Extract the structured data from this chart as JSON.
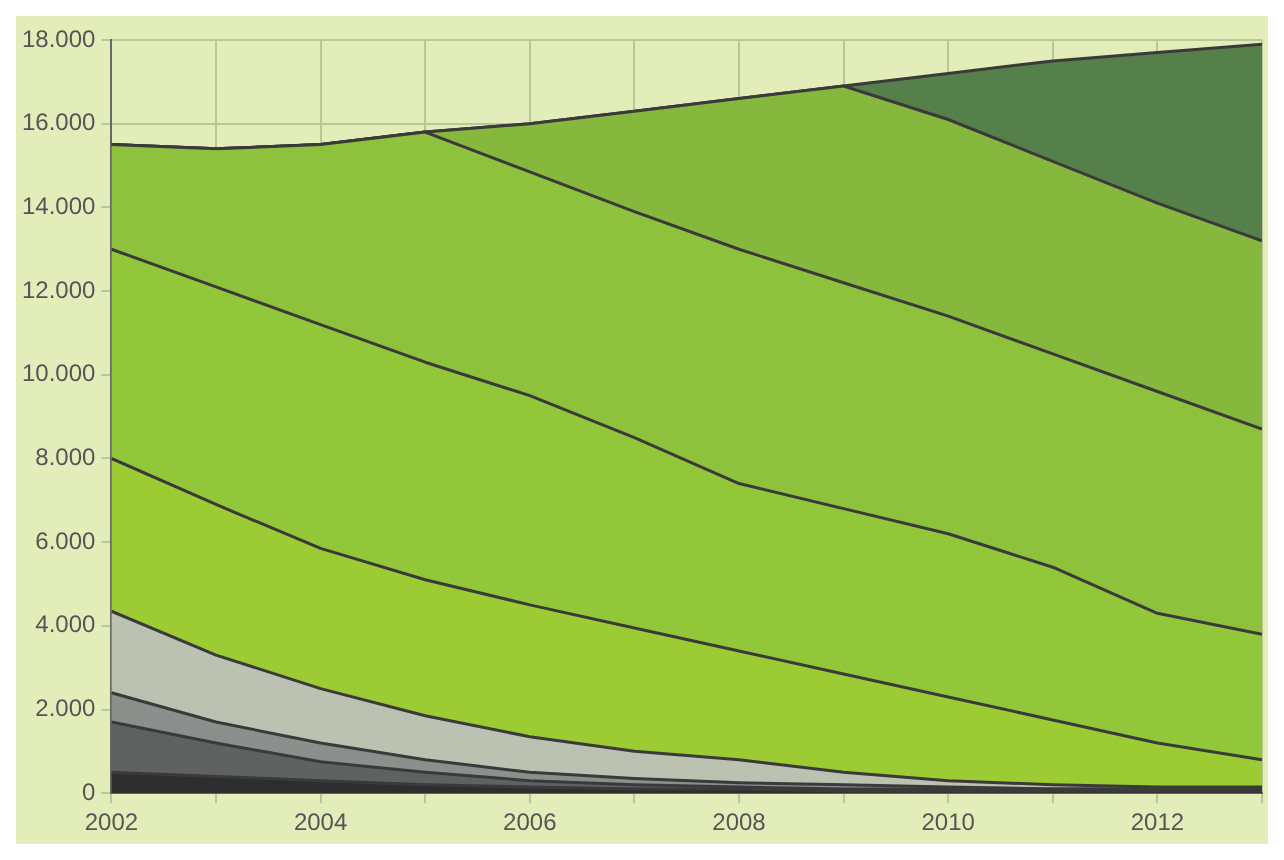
{
  "chart_data": {
    "type": "area",
    "stacked": true,
    "grid": true,
    "marker": "none",
    "x": [
      2002,
      2003,
      2004,
      2005,
      2006,
      2007,
      2008,
      2009,
      2010,
      2011,
      2012,
      2013
    ],
    "xlim": [
      2002,
      2013
    ],
    "xticks": [
      2002,
      {
        "value": 2003,
        "label": null
      },
      2004,
      {
        "value": 2005,
        "label": null
      },
      2006,
      {
        "value": 2007,
        "label": null
      },
      2008,
      {
        "value": 2009,
        "label": null
      },
      2010,
      {
        "value": 2011,
        "label": null
      },
      2012,
      {
        "value": 2013,
        "label": null
      }
    ],
    "ylim": [
      0,
      18000
    ],
    "yticks": [
      {
        "value": 0,
        "label": "0"
      },
      {
        "value": 2000,
        "label": "2.000"
      },
      {
        "value": 4000,
        "label": "4.000"
      },
      {
        "value": 6000,
        "label": "6.000"
      },
      {
        "value": 8000,
        "label": "8.000"
      },
      {
        "value": 10000,
        "label": "10.000"
      },
      {
        "value": 12000,
        "label": "12.000"
      },
      {
        "value": 14000,
        "label": "14.000"
      },
      {
        "value": 16000,
        "label": "16.000"
      },
      {
        "value": 18000,
        "label": "18.000"
      }
    ],
    "series": [
      {
        "color": "#2e2e2e",
        "values": [
          500,
          400,
          300,
          200,
          150,
          100,
          100,
          50,
          50,
          50,
          50,
          50
        ]
      },
      {
        "color": "#5e6260",
        "values": [
          1200,
          800,
          450,
          300,
          150,
          100,
          50,
          50,
          50,
          50,
          50,
          50
        ]
      },
      {
        "color": "#8c908c",
        "values": [
          700,
          500,
          450,
          300,
          200,
          150,
          100,
          100,
          50,
          0,
          0,
          0
        ]
      },
      {
        "color": "#bcc2b2",
        "values": [
          1950,
          1600,
          1300,
          1050,
          850,
          650,
          550,
          300,
          150,
          100,
          50,
          50
        ]
      },
      {
        "color": "#9ccb34",
        "values": [
          3650,
          3600,
          3350,
          3250,
          3150,
          2950,
          2600,
          2350,
          2000,
          1550,
          1050,
          650
        ]
      },
      {
        "color": "#93c73a",
        "values": [
          5000,
          5200,
          5350,
          5200,
          5000,
          4550,
          4000,
          3950,
          3900,
          3650,
          3100,
          3000
        ]
      },
      {
        "color": "#8ec23c",
        "values": [
          2500,
          3300,
          4300,
          5500,
          5350,
          5400,
          5600,
          5400,
          5200,
          5100,
          5300,
          4900
        ]
      },
      {
        "color": "#86b83e",
        "values": [
          0,
          0,
          0,
          0,
          1150,
          2400,
          3600,
          4700,
          4700,
          4600,
          4500,
          4500
        ]
      },
      {
        "color": "#55804a",
        "values": [
          0,
          0,
          0,
          0,
          0,
          0,
          0,
          0,
          1100,
          2400,
          3600,
          4700
        ]
      }
    ]
  }
}
